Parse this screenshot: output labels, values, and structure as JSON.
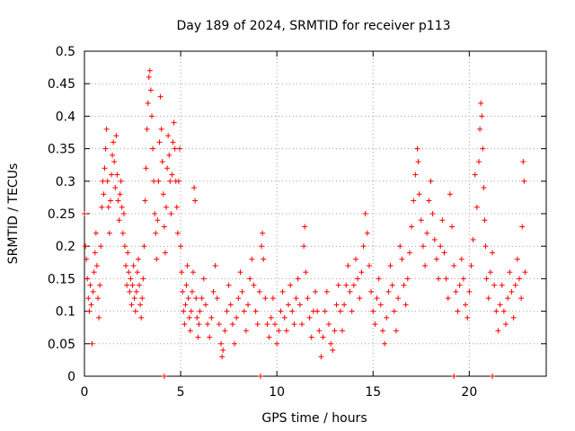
{
  "chart_data": {
    "type": "scatter",
    "title": "Day 189 of 2024, SRMTID for receiver p113",
    "xlabel": "GPS time / hours",
    "ylabel": "SRMTID / TECUs",
    "xlim": [
      0,
      24
    ],
    "ylim": [
      0,
      0.5
    ],
    "xticks": [
      0,
      5,
      10,
      15,
      20
    ],
    "xtick_labels": [
      "0",
      "5",
      "10",
      "15",
      "20"
    ],
    "yticks": [
      0,
      0.05,
      0.1,
      0.15,
      0.2,
      0.25,
      0.3,
      0.35,
      0.4,
      0.45,
      0.5
    ],
    "ytick_labels": [
      "0",
      "0.05",
      "0.1",
      "0.15",
      "0.2",
      "0.25",
      "0.3",
      "0.35",
      "0.4",
      "0.45",
      "0.5"
    ],
    "grid": true,
    "marker": "+",
    "color": "#ff0000",
    "series": [
      {
        "name": "SRMTID",
        "points": [
          [
            0.0,
            0.25
          ],
          [
            0.05,
            0.2
          ],
          [
            0.1,
            0.18
          ],
          [
            0.15,
            0.15
          ],
          [
            0.2,
            0.12
          ],
          [
            0.25,
            0.1
          ],
          [
            0.3,
            0.14
          ],
          [
            0.35,
            0.11
          ],
          [
            0.4,
            0.05
          ],
          [
            0.45,
            0.13
          ],
          [
            0.5,
            0.16
          ],
          [
            0.55,
            0.19
          ],
          [
            0.6,
            0.22
          ],
          [
            0.65,
            0.17
          ],
          [
            0.7,
            0.12
          ],
          [
            0.75,
            0.09
          ],
          [
            0.8,
            0.14
          ],
          [
            0.85,
            0.2
          ],
          [
            0.9,
            0.26
          ],
          [
            0.95,
            0.3
          ],
          [
            1.0,
            0.28
          ],
          [
            1.05,
            0.32
          ],
          [
            1.1,
            0.35
          ],
          [
            1.15,
            0.38
          ],
          [
            1.2,
            0.3
          ],
          [
            1.25,
            0.26
          ],
          [
            1.3,
            0.22
          ],
          [
            1.35,
            0.27
          ],
          [
            1.4,
            0.31
          ],
          [
            1.45,
            0.34
          ],
          [
            1.5,
            0.36
          ],
          [
            1.55,
            0.33
          ],
          [
            1.6,
            0.29
          ],
          [
            1.65,
            0.37
          ],
          [
            1.7,
            0.31
          ],
          [
            1.75,
            0.27
          ],
          [
            1.8,
            0.24
          ],
          [
            1.85,
            0.28
          ],
          [
            1.9,
            0.3
          ],
          [
            1.95,
            0.26
          ],
          [
            2.0,
            0.22
          ],
          [
            2.05,
            0.25
          ],
          [
            2.1,
            0.2
          ],
          [
            2.15,
            0.17
          ],
          [
            2.2,
            0.14
          ],
          [
            2.25,
            0.19
          ],
          [
            2.3,
            0.16
          ],
          [
            2.35,
            0.13
          ],
          [
            2.4,
            0.15
          ],
          [
            2.45,
            0.11
          ],
          [
            2.5,
            0.14
          ],
          [
            2.55,
            0.17
          ],
          [
            2.6,
            0.12
          ],
          [
            2.65,
            0.1
          ],
          [
            2.7,
            0.13
          ],
          [
            2.75,
            0.16
          ],
          [
            2.8,
            0.18
          ],
          [
            2.85,
            0.14
          ],
          [
            2.9,
            0.11
          ],
          [
            2.95,
            0.09
          ],
          [
            3.0,
            0.12
          ],
          [
            3.05,
            0.15
          ],
          [
            3.1,
            0.2
          ],
          [
            3.15,
            0.27
          ],
          [
            3.2,
            0.32
          ],
          [
            3.25,
            0.38
          ],
          [
            3.3,
            0.42
          ],
          [
            3.35,
            0.46
          ],
          [
            3.4,
            0.47
          ],
          [
            3.45,
            0.44
          ],
          [
            3.5,
            0.4
          ],
          [
            3.55,
            0.35
          ],
          [
            3.6,
            0.3
          ],
          [
            3.65,
            0.25
          ],
          [
            3.7,
            0.22
          ],
          [
            3.75,
            0.18
          ],
          [
            3.8,
            0.24
          ],
          [
            3.85,
            0.3
          ],
          [
            3.9,
            0.36
          ],
          [
            3.95,
            0.43
          ],
          [
            4.0,
            0.38
          ],
          [
            4.05,
            0.33
          ],
          [
            4.1,
            0.28
          ],
          [
            4.15,
            0.23
          ],
          [
            4.2,
            0.19
          ],
          [
            4.25,
            0.26
          ],
          [
            4.3,
            0.32
          ],
          [
            4.35,
            0.37
          ],
          [
            4.4,
            0.34
          ],
          [
            4.45,
            0.3
          ],
          [
            4.5,
            0.25
          ],
          [
            4.55,
            0.31
          ],
          [
            4.6,
            0.36
          ],
          [
            4.65,
            0.39
          ],
          [
            4.7,
            0.35
          ],
          [
            4.75,
            0.3
          ],
          [
            4.8,
            0.26
          ],
          [
            4.85,
            0.22
          ],
          [
            4.9,
            0.3
          ],
          [
            4.95,
            0.35
          ],
          [
            5.0,
            0.2
          ],
          [
            5.05,
            0.16
          ],
          [
            5.1,
            0.13
          ],
          [
            5.15,
            0.1
          ],
          [
            5.2,
            0.08
          ],
          [
            5.25,
            0.11
          ],
          [
            5.3,
            0.14
          ],
          [
            5.35,
            0.17
          ],
          [
            5.4,
            0.12
          ],
          [
            5.45,
            0.09
          ],
          [
            5.5,
            0.07
          ],
          [
            5.55,
            0.1
          ],
          [
            5.6,
            0.13
          ],
          [
            5.65,
            0.16
          ],
          [
            5.7,
            0.29
          ],
          [
            5.75,
            0.27
          ],
          [
            5.8,
            0.12
          ],
          [
            5.85,
            0.09
          ],
          [
            5.9,
            0.06
          ],
          [
            5.95,
            0.08
          ],
          [
            6.0,
            0.1
          ],
          [
            6.1,
            0.12
          ],
          [
            6.2,
            0.15
          ],
          [
            6.3,
            0.11
          ],
          [
            6.4,
            0.08
          ],
          [
            6.5,
            0.06
          ],
          [
            6.6,
            0.09
          ],
          [
            6.7,
            0.13
          ],
          [
            6.8,
            0.17
          ],
          [
            6.9,
            0.12
          ],
          [
            7.0,
            0.08
          ],
          [
            7.1,
            0.05
          ],
          [
            7.15,
            0.03
          ],
          [
            7.2,
            0.04
          ],
          [
            7.3,
            0.07
          ],
          [
            7.4,
            0.1
          ],
          [
            7.5,
            0.14
          ],
          [
            7.6,
            0.11
          ],
          [
            7.7,
            0.08
          ],
          [
            7.8,
            0.05
          ],
          [
            7.9,
            0.09
          ],
          [
            8.0,
            0.12
          ],
          [
            8.1,
            0.16
          ],
          [
            8.2,
            0.13
          ],
          [
            8.3,
            0.1
          ],
          [
            8.4,
            0.07
          ],
          [
            8.5,
            0.11
          ],
          [
            8.6,
            0.15
          ],
          [
            8.7,
            0.18
          ],
          [
            8.8,
            0.14
          ],
          [
            8.9,
            0.1
          ],
          [
            9.0,
            0.08
          ],
          [
            9.1,
            0.13
          ],
          [
            9.2,
            0.2
          ],
          [
            9.25,
            0.22
          ],
          [
            9.3,
            0.18
          ],
          [
            9.4,
            0.12
          ],
          [
            9.5,
            0.08
          ],
          [
            9.6,
            0.06
          ],
          [
            9.7,
            0.09
          ],
          [
            9.8,
            0.12
          ],
          [
            9.9,
            0.08
          ],
          [
            10.0,
            0.05
          ],
          [
            10.1,
            0.07
          ],
          [
            10.2,
            0.1
          ],
          [
            10.3,
            0.13
          ],
          [
            10.4,
            0.09
          ],
          [
            10.5,
            0.07
          ],
          [
            10.6,
            0.11
          ],
          [
            10.7,
            0.14
          ],
          [
            10.8,
            0.1
          ],
          [
            10.9,
            0.08
          ],
          [
            11.0,
            0.12
          ],
          [
            11.1,
            0.15
          ],
          [
            11.2,
            0.11
          ],
          [
            11.3,
            0.08
          ],
          [
            11.4,
            0.2
          ],
          [
            11.45,
            0.23
          ],
          [
            11.5,
            0.16
          ],
          [
            11.6,
            0.12
          ],
          [
            11.7,
            0.09
          ],
          [
            11.8,
            0.06
          ],
          [
            11.9,
            0.1
          ],
          [
            12.0,
            0.13
          ],
          [
            12.1,
            0.1
          ],
          [
            12.2,
            0.07
          ],
          [
            12.3,
            0.03
          ],
          [
            12.4,
            0.06
          ],
          [
            12.5,
            0.1
          ],
          [
            12.6,
            0.13
          ],
          [
            12.7,
            0.08
          ],
          [
            12.8,
            0.05
          ],
          [
            12.9,
            0.04
          ],
          [
            13.0,
            0.07
          ],
          [
            13.1,
            0.11
          ],
          [
            13.2,
            0.14
          ],
          [
            13.3,
            0.1
          ],
          [
            13.4,
            0.07
          ],
          [
            13.5,
            0.11
          ],
          [
            13.6,
            0.14
          ],
          [
            13.7,
            0.17
          ],
          [
            13.8,
            0.13
          ],
          [
            13.9,
            0.1
          ],
          [
            14.0,
            0.14
          ],
          [
            14.1,
            0.18
          ],
          [
            14.2,
            0.15
          ],
          [
            14.3,
            0.12
          ],
          [
            14.4,
            0.16
          ],
          [
            14.5,
            0.2
          ],
          [
            14.6,
            0.25
          ],
          [
            14.7,
            0.22
          ],
          [
            14.8,
            0.17
          ],
          [
            14.9,
            0.13
          ],
          [
            15.0,
            0.1
          ],
          [
            15.1,
            0.08
          ],
          [
            15.2,
            0.12
          ],
          [
            15.3,
            0.15
          ],
          [
            15.4,
            0.11
          ],
          [
            15.5,
            0.07
          ],
          [
            15.6,
            0.05
          ],
          [
            15.7,
            0.09
          ],
          [
            15.8,
            0.13
          ],
          [
            15.9,
            0.17
          ],
          [
            16.0,
            0.14
          ],
          [
            16.1,
            0.1
          ],
          [
            16.2,
            0.07
          ],
          [
            16.3,
            0.12
          ],
          [
            16.4,
            0.2
          ],
          [
            16.5,
            0.18
          ],
          [
            16.6,
            0.14
          ],
          [
            16.7,
            0.11
          ],
          [
            16.8,
            0.15
          ],
          [
            16.9,
            0.19
          ],
          [
            17.0,
            0.23
          ],
          [
            17.1,
            0.27
          ],
          [
            17.2,
            0.31
          ],
          [
            17.3,
            0.35
          ],
          [
            17.35,
            0.33
          ],
          [
            17.4,
            0.28
          ],
          [
            17.5,
            0.24
          ],
          [
            17.6,
            0.2
          ],
          [
            17.7,
            0.17
          ],
          [
            17.8,
            0.22
          ],
          [
            17.9,
            0.27
          ],
          [
            18.0,
            0.3
          ],
          [
            18.1,
            0.25
          ],
          [
            18.2,
            0.21
          ],
          [
            18.3,
            0.18
          ],
          [
            18.4,
            0.15
          ],
          [
            18.5,
            0.2
          ],
          [
            18.6,
            0.24
          ],
          [
            18.7,
            0.19
          ],
          [
            18.8,
            0.15
          ],
          [
            18.9,
            0.12
          ],
          [
            19.0,
            0.28
          ],
          [
            19.1,
            0.23
          ],
          [
            19.2,
            0.17
          ],
          [
            19.3,
            0.13
          ],
          [
            19.4,
            0.1
          ],
          [
            19.5,
            0.14
          ],
          [
            19.6,
            0.18
          ],
          [
            19.7,
            0.15
          ],
          [
            19.8,
            0.11
          ],
          [
            19.9,
            0.09
          ],
          [
            20.0,
            0.13
          ],
          [
            20.1,
            0.17
          ],
          [
            20.2,
            0.21
          ],
          [
            20.3,
            0.31
          ],
          [
            20.4,
            0.26
          ],
          [
            20.5,
            0.33
          ],
          [
            20.55,
            0.38
          ],
          [
            20.6,
            0.42
          ],
          [
            20.65,
            0.4
          ],
          [
            20.7,
            0.35
          ],
          [
            20.75,
            0.29
          ],
          [
            20.8,
            0.24
          ],
          [
            20.85,
            0.2
          ],
          [
            20.9,
            0.15
          ],
          [
            21.0,
            0.12
          ],
          [
            21.1,
            0.16
          ],
          [
            21.2,
            0.19
          ],
          [
            21.3,
            0.14
          ],
          [
            21.4,
            0.1
          ],
          [
            21.5,
            0.07
          ],
          [
            21.6,
            0.11
          ],
          [
            21.7,
            0.14
          ],
          [
            21.8,
            0.1
          ],
          [
            21.9,
            0.08
          ],
          [
            22.0,
            0.12
          ],
          [
            22.1,
            0.16
          ],
          [
            22.2,
            0.13
          ],
          [
            22.3,
            0.09
          ],
          [
            22.4,
            0.14
          ],
          [
            22.5,
            0.18
          ],
          [
            22.6,
            0.15
          ],
          [
            22.7,
            0.12
          ],
          [
            22.75,
            0.23
          ],
          [
            22.8,
            0.33
          ],
          [
            22.85,
            0.3
          ],
          [
            22.9,
            0.16
          ],
          [
            4.15,
            0.0
          ],
          [
            9.15,
            0.0
          ],
          [
            19.2,
            0.0
          ],
          [
            21.2,
            0.0
          ]
        ]
      }
    ]
  }
}
